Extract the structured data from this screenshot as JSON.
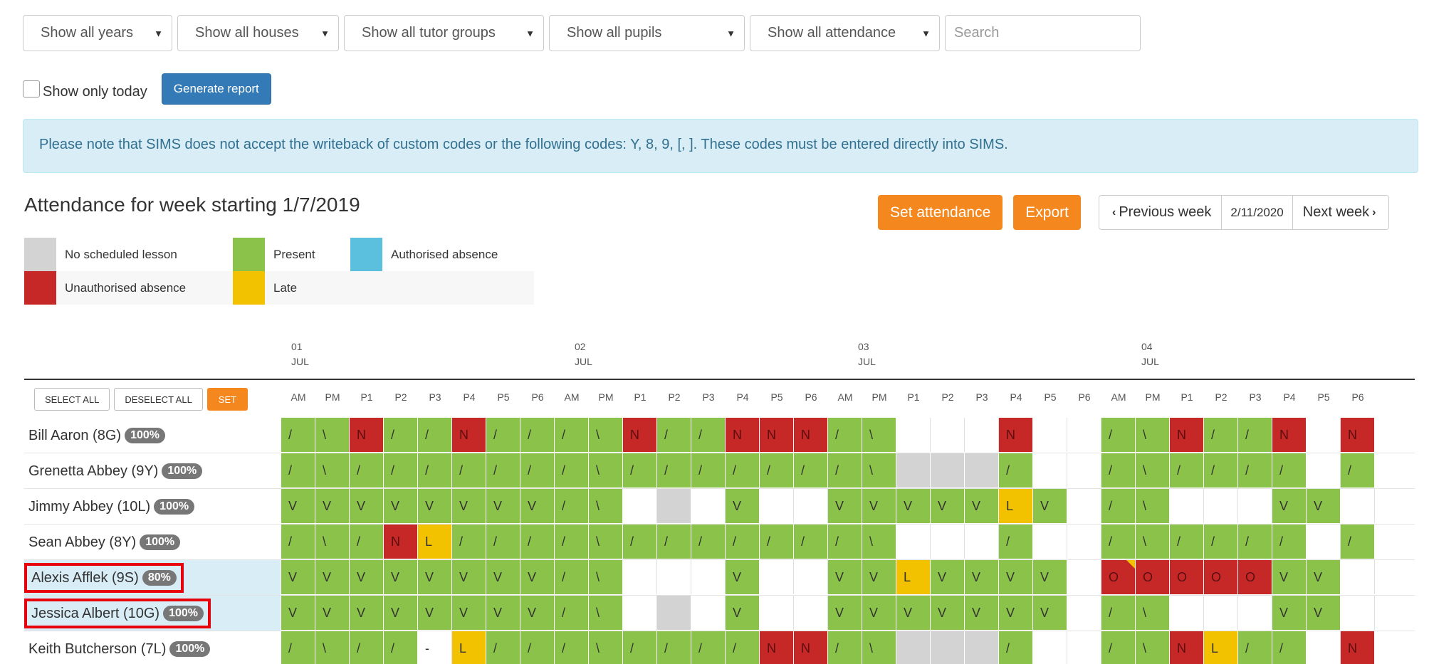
{
  "filters": {
    "years": "Show all years",
    "houses": "Show all houses",
    "tutor_groups": "Show all tutor groups",
    "pupils": "Show all pupils",
    "attendance": "Show all attendance",
    "search_placeholder": "Search"
  },
  "show_only_today_label": "Show only today",
  "generate_report_label": "Generate report",
  "alert_text": "Please note that SIMS does not accept the writeback of custom codes or the following codes: Y, 8, 9, [, ]. These codes must be entered directly into SIMS.",
  "week_title": "Attendance for week starting 1/7/2019",
  "set_attendance_label": "Set attendance",
  "export_label": "Export",
  "prev_week_label": "Previous week",
  "current_date": "2/11/2020",
  "next_week_label": "Next week",
  "legend": [
    {
      "label": "No scheduled lesson",
      "color": "#d3d3d3"
    },
    {
      "label": "Present",
      "color": "#8bc34a"
    },
    {
      "label": "Authorised absence",
      "color": "#5bc0de"
    },
    {
      "label": "Unauthorised absence",
      "color": "#c62828"
    },
    {
      "label": "Late",
      "color": "#f2c200"
    }
  ],
  "days": [
    {
      "day": "01",
      "month": "JUL"
    },
    {
      "day": "02",
      "month": "JUL"
    },
    {
      "day": "03",
      "month": "JUL"
    },
    {
      "day": "04",
      "month": "JUL"
    }
  ],
  "controls": {
    "select_all": "SELECT ALL",
    "deselect_all": "DESELECT ALL",
    "set": "SET"
  },
  "periods": [
    "AM",
    "PM",
    "P1",
    "P2",
    "P3",
    "P4",
    "P5",
    "P6",
    "AM",
    "PM",
    "P1",
    "P2",
    "P3",
    "P4",
    "P5",
    "P6",
    "AM",
    "PM",
    "P1",
    "P2",
    "P3",
    "P4",
    "P5",
    "P6",
    "AM",
    "PM",
    "P1",
    "P2",
    "P3",
    "P4",
    "P5",
    "P6"
  ],
  "pupils": [
    {
      "name": "Bill Aaron (8G)",
      "pct": "100%",
      "highlighted": false,
      "cells": [
        [
          "g",
          "/"
        ],
        [
          "g",
          "\\"
        ],
        [
          "r",
          "N"
        ],
        [
          "g",
          "/"
        ],
        [
          "g",
          "/"
        ],
        [
          "r",
          "N"
        ],
        [
          "g",
          "/"
        ],
        [
          "g",
          "/"
        ],
        [
          "g",
          "/"
        ],
        [
          "g",
          "\\"
        ],
        [
          "r",
          "N"
        ],
        [
          "g",
          "/"
        ],
        [
          "g",
          "/"
        ],
        [
          "r",
          "N"
        ],
        [
          "r",
          "N"
        ],
        [
          "r",
          "N"
        ],
        [
          "g",
          "/"
        ],
        [
          "g",
          "\\"
        ],
        [
          "b",
          ""
        ],
        [
          "b",
          ""
        ],
        [
          "b",
          ""
        ],
        [
          "r",
          "N"
        ],
        [
          "b",
          ""
        ],
        [
          "b",
          ""
        ],
        [
          "g",
          "/"
        ],
        [
          "g",
          "\\"
        ],
        [
          "r",
          "N"
        ],
        [
          "g",
          "/"
        ],
        [
          "g",
          "/"
        ],
        [
          "r",
          "N"
        ],
        [
          "b",
          ""
        ],
        [
          "r",
          "N"
        ]
      ]
    },
    {
      "name": "Grenetta Abbey (9Y)",
      "pct": "100%",
      "highlighted": false,
      "cells": [
        [
          "g",
          "/"
        ],
        [
          "g",
          "\\"
        ],
        [
          "g",
          "/"
        ],
        [
          "g",
          "/"
        ],
        [
          "g",
          "/"
        ],
        [
          "g",
          "/"
        ],
        [
          "g",
          "/"
        ],
        [
          "g",
          "/"
        ],
        [
          "g",
          "/"
        ],
        [
          "g",
          "\\"
        ],
        [
          "g",
          "/"
        ],
        [
          "g",
          "/"
        ],
        [
          "g",
          "/"
        ],
        [
          "g",
          "/"
        ],
        [
          "g",
          "/"
        ],
        [
          "g",
          "/"
        ],
        [
          "g",
          "/"
        ],
        [
          "g",
          "\\"
        ],
        [
          "x",
          ""
        ],
        [
          "x",
          ""
        ],
        [
          "x",
          ""
        ],
        [
          "g",
          "/"
        ],
        [
          "b",
          ""
        ],
        [
          "b",
          ""
        ],
        [
          "g",
          "/"
        ],
        [
          "g",
          "\\"
        ],
        [
          "g",
          "/"
        ],
        [
          "g",
          "/"
        ],
        [
          "g",
          "/"
        ],
        [
          "g",
          "/"
        ],
        [
          "b",
          ""
        ],
        [
          "g",
          "/"
        ]
      ]
    },
    {
      "name": "Jimmy Abbey (10L)",
      "pct": "100%",
      "highlighted": false,
      "cells": [
        [
          "g",
          "V"
        ],
        [
          "g",
          "V"
        ],
        [
          "g",
          "V"
        ],
        [
          "g",
          "V"
        ],
        [
          "g",
          "V"
        ],
        [
          "g",
          "V"
        ],
        [
          "g",
          "V"
        ],
        [
          "g",
          "V"
        ],
        [
          "g",
          "/"
        ],
        [
          "g",
          "\\"
        ],
        [
          "b",
          ""
        ],
        [
          "x",
          ""
        ],
        [
          "b",
          ""
        ],
        [
          "g",
          "V"
        ],
        [
          "b",
          ""
        ],
        [
          "b",
          ""
        ],
        [
          "g",
          "V"
        ],
        [
          "g",
          "V"
        ],
        [
          "g",
          "V"
        ],
        [
          "g",
          "V"
        ],
        [
          "g",
          "V"
        ],
        [
          "y",
          "L"
        ],
        [
          "g",
          "V"
        ],
        [
          "b",
          ""
        ],
        [
          "g",
          "/"
        ],
        [
          "g",
          "\\"
        ],
        [
          "b",
          ""
        ],
        [
          "b",
          ""
        ],
        [
          "b",
          ""
        ],
        [
          "g",
          "V"
        ],
        [
          "g",
          "V"
        ],
        [
          "b",
          ""
        ]
      ]
    },
    {
      "name": "Sean Abbey (8Y)",
      "pct": "100%",
      "highlighted": false,
      "cells": [
        [
          "g",
          "/"
        ],
        [
          "g",
          "\\"
        ],
        [
          "g",
          "/"
        ],
        [
          "r",
          "N"
        ],
        [
          "yn",
          "L"
        ],
        [
          "g",
          "/"
        ],
        [
          "g",
          "/"
        ],
        [
          "g",
          "/"
        ],
        [
          "g",
          "/"
        ],
        [
          "g",
          "\\"
        ],
        [
          "g",
          "/"
        ],
        [
          "g",
          "/"
        ],
        [
          "g",
          "/"
        ],
        [
          "g",
          "/"
        ],
        [
          "g",
          "/"
        ],
        [
          "g",
          "/"
        ],
        [
          "g",
          "/"
        ],
        [
          "g",
          "\\"
        ],
        [
          "b",
          ""
        ],
        [
          "b",
          ""
        ],
        [
          "b",
          ""
        ],
        [
          "g",
          "/"
        ],
        [
          "b",
          ""
        ],
        [
          "b",
          ""
        ],
        [
          "g",
          "/"
        ],
        [
          "g",
          "\\"
        ],
        [
          "g",
          "/"
        ],
        [
          "g",
          "/"
        ],
        [
          "g",
          "/"
        ],
        [
          "g",
          "/"
        ],
        [
          "b",
          ""
        ],
        [
          "g",
          "/"
        ]
      ]
    },
    {
      "name": "Alexis Afflek (9S)",
      "pct": "80%",
      "highlighted": true,
      "cells": [
        [
          "g",
          "V"
        ],
        [
          "g",
          "V"
        ],
        [
          "g",
          "V"
        ],
        [
          "g",
          "V"
        ],
        [
          "g",
          "V"
        ],
        [
          "g",
          "V"
        ],
        [
          "g",
          "V"
        ],
        [
          "g",
          "V"
        ],
        [
          "g",
          "/"
        ],
        [
          "g",
          "\\"
        ],
        [
          "b",
          ""
        ],
        [
          "b",
          ""
        ],
        [
          "b",
          ""
        ],
        [
          "g",
          "V"
        ],
        [
          "b",
          ""
        ],
        [
          "b",
          ""
        ],
        [
          "g",
          "V"
        ],
        [
          "g",
          "V"
        ],
        [
          "y",
          "L"
        ],
        [
          "g",
          "V"
        ],
        [
          "g",
          "V"
        ],
        [
          "g",
          "V"
        ],
        [
          "g",
          "V"
        ],
        [
          "b",
          ""
        ],
        [
          "rn",
          "O"
        ],
        [
          "r",
          "O"
        ],
        [
          "r",
          "O"
        ],
        [
          "r",
          "O"
        ],
        [
          "r",
          "O"
        ],
        [
          "g",
          "V"
        ],
        [
          "g",
          "V"
        ],
        [
          "b",
          ""
        ]
      ]
    },
    {
      "name": "Jessica Albert (10G)",
      "pct": "100%",
      "highlighted": true,
      "cells": [
        [
          "g",
          "V"
        ],
        [
          "g",
          "V"
        ],
        [
          "g",
          "V"
        ],
        [
          "g",
          "V"
        ],
        [
          "g",
          "V"
        ],
        [
          "g",
          "V"
        ],
        [
          "g",
          "V"
        ],
        [
          "g",
          "V"
        ],
        [
          "g",
          "/"
        ],
        [
          "g",
          "\\"
        ],
        [
          "b",
          ""
        ],
        [
          "x",
          ""
        ],
        [
          "b",
          ""
        ],
        [
          "g",
          "V"
        ],
        [
          "b",
          ""
        ],
        [
          "b",
          ""
        ],
        [
          "g",
          "V"
        ],
        [
          "g",
          "V"
        ],
        [
          "g",
          "V"
        ],
        [
          "g",
          "V"
        ],
        [
          "g",
          "V"
        ],
        [
          "g",
          "V"
        ],
        [
          "g",
          "V"
        ],
        [
          "b",
          ""
        ],
        [
          "g",
          "/"
        ],
        [
          "g",
          "\\"
        ],
        [
          "b",
          ""
        ],
        [
          "b",
          ""
        ],
        [
          "b",
          ""
        ],
        [
          "g",
          "V"
        ],
        [
          "g",
          "V"
        ],
        [
          "b",
          ""
        ]
      ]
    },
    {
      "name": "Keith Butcherson (7L)",
      "pct": "100%",
      "highlighted": false,
      "cells": [
        [
          "g",
          "/"
        ],
        [
          "g",
          "\\"
        ],
        [
          "g",
          "/"
        ],
        [
          "g",
          "/"
        ],
        [
          "b",
          "-"
        ],
        [
          "y",
          "L"
        ],
        [
          "g",
          "/"
        ],
        [
          "g",
          "/"
        ],
        [
          "g",
          "/"
        ],
        [
          "g",
          "\\"
        ],
        [
          "g",
          "/"
        ],
        [
          "g",
          "/"
        ],
        [
          "g",
          "/"
        ],
        [
          "g",
          "/"
        ],
        [
          "r",
          "N"
        ],
        [
          "r",
          "N"
        ],
        [
          "g",
          "/"
        ],
        [
          "g",
          "\\"
        ],
        [
          "x",
          ""
        ],
        [
          "x",
          ""
        ],
        [
          "x",
          ""
        ],
        [
          "g",
          "/"
        ],
        [
          "b",
          ""
        ],
        [
          "b",
          ""
        ],
        [
          "g",
          "/"
        ],
        [
          "g",
          "\\"
        ],
        [
          "r",
          "N"
        ],
        [
          "y",
          "L"
        ],
        [
          "g",
          "/"
        ],
        [
          "g",
          "/"
        ],
        [
          "b",
          ""
        ],
        [
          "r",
          "N"
        ]
      ]
    }
  ]
}
